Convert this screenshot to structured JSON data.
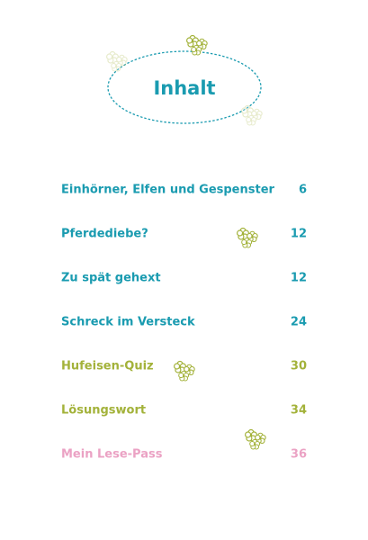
{
  "header": {
    "title": "Inhalt"
  },
  "entries": [
    {
      "title": "Einhörner, Elfen und Gespenster",
      "page": 6,
      "color": "#1a9bb0"
    },
    {
      "title": "Pferdediebe?",
      "page": 12,
      "color": "#1a9bb0"
    },
    {
      "title": "Zu spät gehext",
      "page": 12,
      "color": "#1a9bb0"
    },
    {
      "title": "Schreck im Versteck",
      "page": 24,
      "color": "#1a9bb0"
    },
    {
      "title": "Hufeisen-Quiz",
      "page": 30,
      "color": "#a3b23a"
    },
    {
      "title": "Lösungswort",
      "page": 34,
      "color": "#a3b23a"
    },
    {
      "title": "Mein Lese-Pass",
      "page": 36,
      "color": "#eba2c4"
    }
  ]
}
